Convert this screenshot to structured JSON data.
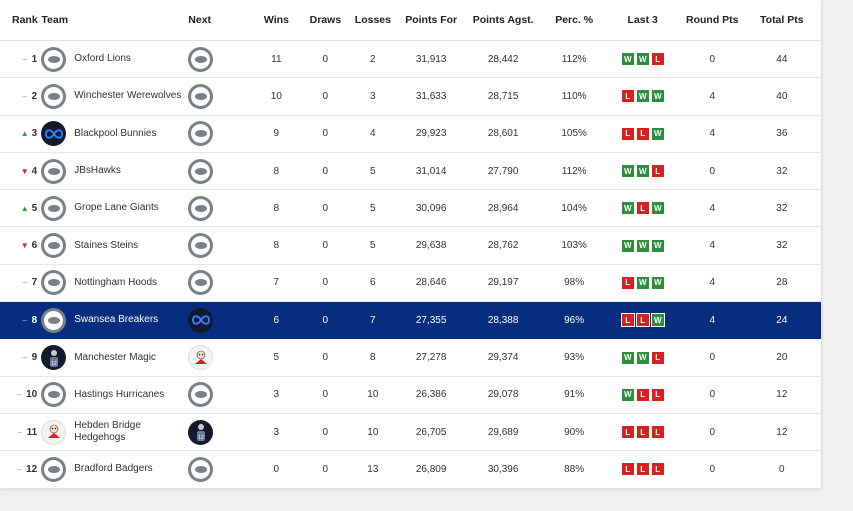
{
  "headers": {
    "rank": "Rank",
    "team": "Team",
    "next": "Next",
    "wins": "Wins",
    "draws": "Draws",
    "losses": "Losses",
    "points_for": "Points For",
    "points_agst": "Points Agst.",
    "perc": "Perc. %",
    "last3": "Last 3",
    "round_pts": "Round Pts",
    "total_pts": "Total Pts"
  },
  "colors": {
    "win": "#2d8f3b",
    "loss": "#d91f1f",
    "highlight": "#062d80",
    "up": "#2d9b3e",
    "down": "#d91f1f"
  },
  "rows": [
    {
      "rank": "1",
      "move": "same",
      "team": "Oxford Lions",
      "team_logo": "puck",
      "next_logo": "puck",
      "wins": "11",
      "draws": "0",
      "losses": "2",
      "pf": "31,913",
      "pa": "28,442",
      "perc": "112%",
      "last3": [
        "W",
        "W",
        "L"
      ],
      "round": "0",
      "total": "44"
    },
    {
      "rank": "2",
      "move": "same",
      "team": "Winchester Werewolves",
      "team_logo": "puck",
      "next_logo": "puck",
      "wins": "10",
      "draws": "0",
      "losses": "3",
      "pf": "31,633",
      "pa": "28,715",
      "perc": "110%",
      "last3": [
        "L",
        "W",
        "W"
      ],
      "round": "4",
      "total": "40"
    },
    {
      "rank": "3",
      "move": "up",
      "team": "Blackpool Bunnies",
      "team_logo": "infinity",
      "next_logo": "puck",
      "wins": "9",
      "draws": "0",
      "losses": "4",
      "pf": "29,923",
      "pa": "28,601",
      "perc": "105%",
      "last3": [
        "L",
        "L",
        "W"
      ],
      "round": "4",
      "total": "36"
    },
    {
      "rank": "4",
      "move": "down",
      "team": "JBsHawks",
      "team_logo": "puck",
      "next_logo": "puck",
      "wins": "8",
      "draws": "0",
      "losses": "5",
      "pf": "31,014",
      "pa": "27,790",
      "perc": "112%",
      "last3": [
        "W",
        "W",
        "L"
      ],
      "round": "0",
      "total": "32"
    },
    {
      "rank": "5",
      "move": "up",
      "team": "Grope Lane Giants",
      "team_logo": "puck",
      "next_logo": "puck",
      "wins": "8",
      "draws": "0",
      "losses": "5",
      "pf": "30,096",
      "pa": "28,964",
      "perc": "104%",
      "last3": [
        "W",
        "L",
        "W"
      ],
      "round": "4",
      "total": "32"
    },
    {
      "rank": "6",
      "move": "down",
      "team": "Staines Steins",
      "team_logo": "puck",
      "next_logo": "puck",
      "wins": "8",
      "draws": "0",
      "losses": "5",
      "pf": "29,638",
      "pa": "28,762",
      "perc": "103%",
      "last3": [
        "W",
        "W",
        "W"
      ],
      "round": "4",
      "total": "32"
    },
    {
      "rank": "7",
      "move": "same",
      "team": "Nottingham Hoods",
      "team_logo": "puck",
      "next_logo": "puck",
      "wins": "7",
      "draws": "0",
      "losses": "6",
      "pf": "28,646",
      "pa": "29,197",
      "perc": "98%",
      "last3": [
        "L",
        "W",
        "W"
      ],
      "round": "4",
      "total": "28"
    },
    {
      "rank": "8",
      "move": "same",
      "team": "Swansea Breakers",
      "team_logo": "puck",
      "next_logo": "infinity",
      "wins": "6",
      "draws": "0",
      "losses": "7",
      "pf": "27,355",
      "pa": "28,388",
      "perc": "96%",
      "last3": [
        "L",
        "L",
        "W"
      ],
      "round": "4",
      "total": "24",
      "highlight": true
    },
    {
      "rank": "9",
      "move": "same",
      "team": "Manchester Magic",
      "team_logo": "player",
      "next_logo": "cartoon",
      "wins": "5",
      "draws": "0",
      "losses": "8",
      "pf": "27,278",
      "pa": "29,374",
      "perc": "93%",
      "last3": [
        "W",
        "W",
        "L"
      ],
      "round": "0",
      "total": "20"
    },
    {
      "rank": "10",
      "move": "same",
      "team": "Hastings Hurricanes",
      "team_logo": "puck",
      "next_logo": "puck",
      "wins": "3",
      "draws": "0",
      "losses": "10",
      "pf": "26,386",
      "pa": "29,078",
      "perc": "91%",
      "last3": [
        "W",
        "L",
        "L"
      ],
      "round": "0",
      "total": "12"
    },
    {
      "rank": "11",
      "move": "same",
      "team": "Hebden Bridge Hedgehogs",
      "team_logo": "cartoon",
      "next_logo": "player",
      "wins": "3",
      "draws": "0",
      "losses": "10",
      "pf": "26,705",
      "pa": "29,689",
      "perc": "90%",
      "last3": [
        "L",
        "L",
        "L"
      ],
      "round": "0",
      "total": "12"
    },
    {
      "rank": "12",
      "move": "same",
      "team": "Bradford Badgers",
      "team_logo": "puck",
      "next_logo": "puck",
      "wins": "0",
      "draws": "0",
      "losses": "13",
      "pf": "26,809",
      "pa": "30,396",
      "perc": "88%",
      "last3": [
        "L",
        "L",
        "L"
      ],
      "round": "0",
      "total": "0"
    }
  ]
}
